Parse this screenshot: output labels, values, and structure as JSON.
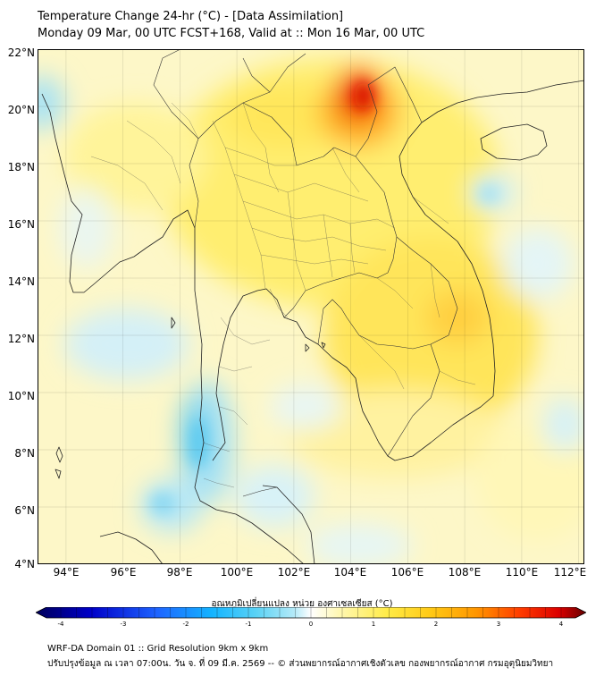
{
  "title": {
    "line1": "Temperature Change 24-hr (°C) - [Data Assimilation]",
    "line2": "Monday 09 Mar, 00 UTC FCST+168, Valid at :: Mon 16 Mar, 00 UTC"
  },
  "axes": {
    "lat_labels": [
      "22°N",
      "20°N",
      "18°N",
      "16°N",
      "14°N",
      "12°N",
      "10°N",
      "8°N",
      "6°N",
      "4°N"
    ],
    "lon_labels": [
      "94°E",
      "96°E",
      "98°E",
      "100°E",
      "102°E",
      "104°E",
      "106°E",
      "108°E",
      "110°E",
      "112°E"
    ],
    "lat_range": [
      4,
      22
    ],
    "lon_range": [
      93,
      112.2
    ]
  },
  "colorbar": {
    "title": "อุณหภูมิเปลี่ยนแปลง หน่วย องศาเซลเซียส (°C)",
    "tick_labels": [
      "-4",
      "-3",
      "-2",
      "-1",
      "0",
      "1",
      "2",
      "3",
      "4"
    ],
    "range": [
      -4,
      4
    ],
    "colors": [
      "#00005a",
      "#0000c8",
      "#1e64ff",
      "#14b4ff",
      "#5ad2f5",
      "#b4eaf8",
      "#ffffff",
      "#fff8b4",
      "#ffeb46",
      "#ffc814",
      "#ff9600",
      "#ff3c00",
      "#dc0000",
      "#640000"
    ]
  },
  "footer": {
    "line1": "WRF-DA Domain 01 :: Grid Resolution 9km x 9km",
    "line2": "ปรับปรุงข้อมูล ณ เวลา 07:00น. วัน จ. ที่ 09 มี.ค. 2569 -- © ส่วนพยากรณ์อากาศเชิงตัวเลข กองพยากรณ์อากาศ กรมอุตุนิยมวิทยา"
  }
}
